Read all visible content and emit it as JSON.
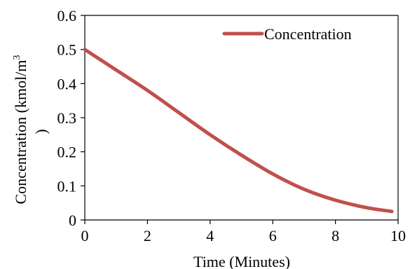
{
  "chart_data": {
    "type": "line",
    "title": "",
    "xlabel": "Time (Minutes)",
    "ylabel_main": "Concentration (kmol/m",
    "ylabel_sup": "3",
    "ylabel_close": ")",
    "xlim": [
      0,
      10
    ],
    "ylim": [
      0,
      0.6
    ],
    "xticks": [
      "0",
      "2",
      "4",
      "6",
      "8",
      "10"
    ],
    "yticks": [
      "0",
      "0.1",
      "0.2",
      "0.3",
      "0.4",
      "0.5",
      "0.6"
    ],
    "grid": false,
    "legend_position": "top-right",
    "series": [
      {
        "name": "Concentration",
        "color": "#c0504d",
        "x": [
          0,
          1,
          2,
          3,
          4,
          5,
          6,
          7,
          8,
          9,
          9.8
        ],
        "y": [
          0.5,
          0.44,
          0.38,
          0.315,
          0.25,
          0.19,
          0.135,
          0.09,
          0.058,
          0.036,
          0.025
        ]
      }
    ]
  }
}
